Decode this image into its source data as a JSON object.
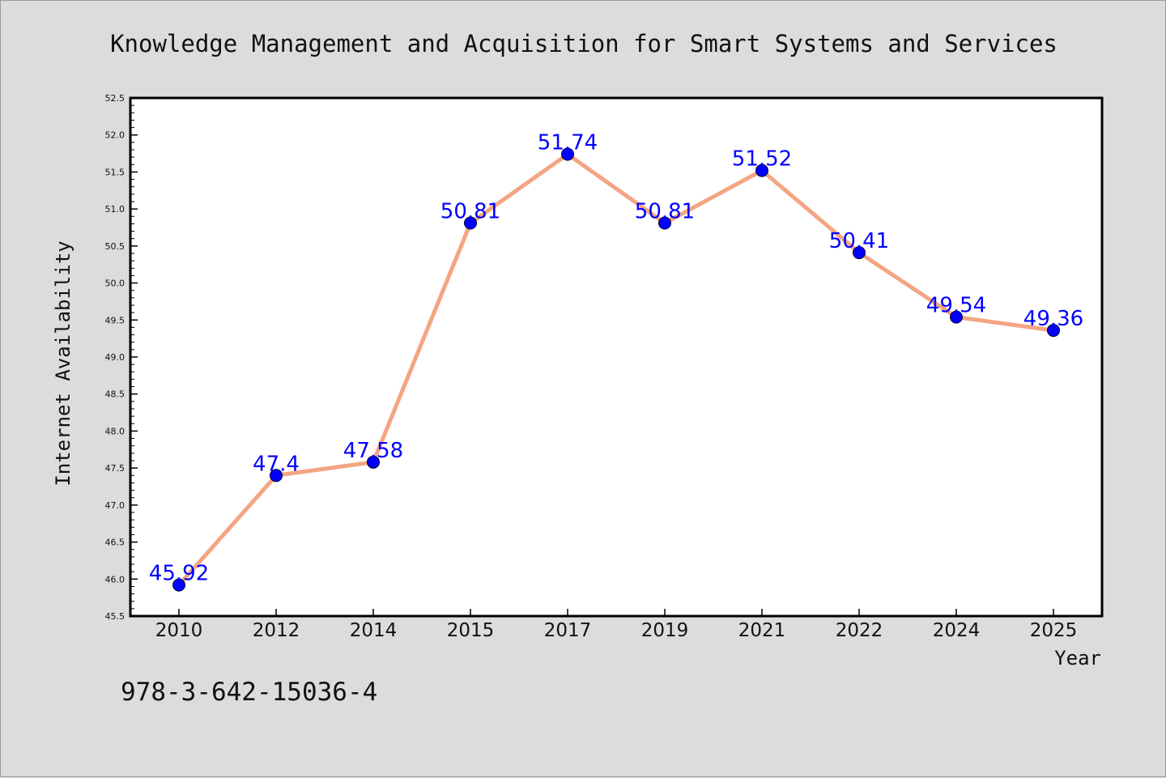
{
  "footer": {
    "isbn": "978-3-642-15036-4"
  },
  "colors": {
    "background": "#dcdcdc",
    "plot_area": "#ffffff",
    "line": "#f4a582",
    "marker": "#0000ff",
    "label": "#0000ff"
  },
  "chart_data": {
    "type": "line",
    "title": "Knowledge Management and Acquisition for Smart Systems and Services",
    "xlabel": "Year",
    "ylabel": "Internet Availability",
    "categories": [
      "2010",
      "2012",
      "2014",
      "2015",
      "2017",
      "2019",
      "2021",
      "2022",
      "2024",
      "2025"
    ],
    "series": [
      {
        "values": [
          45.92,
          47.4,
          47.58,
          50.81,
          51.74,
          50.81,
          51.52,
          50.41,
          49.54,
          49.36
        ],
        "labels": [
          "45.92",
          "47.4",
          "47.58",
          "50.81",
          "51.74",
          "50.81",
          "51.52",
          "50.41",
          "49.54",
          "49.36"
        ]
      }
    ],
    "ylim": [
      45.5,
      52.5
    ],
    "yticks": [
      "45.5",
      "46.0",
      "46.5",
      "47.0",
      "47.5",
      "48.0",
      "48.5",
      "49.0",
      "49.5",
      "50.0",
      "50.5",
      "51.0",
      "51.5",
      "52.0",
      "52.5"
    ],
    "grid": false,
    "legend": "none"
  }
}
